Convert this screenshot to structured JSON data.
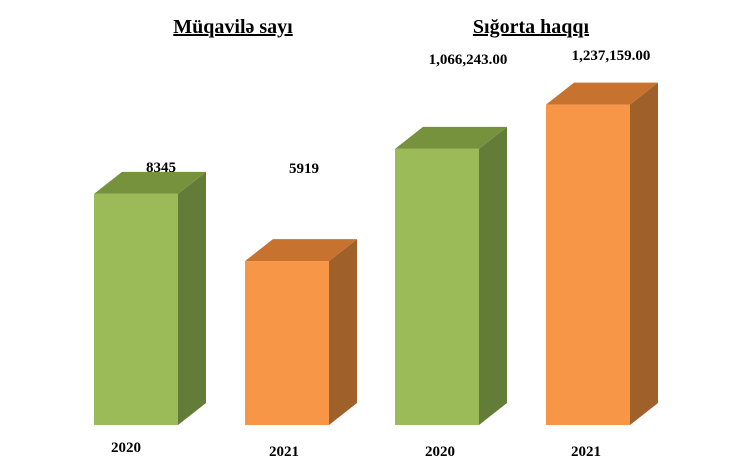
{
  "colors": {
    "green_front": "#9bbb59",
    "green_top": "#76923c",
    "green_side": "#637c38",
    "orange_front": "#f79646",
    "orange_top": "#c7722f",
    "orange_side": "#a0602a"
  },
  "chart_data": [
    {
      "type": "bar",
      "title": "Müqavilə sayı",
      "categories": [
        "2020",
        "2021"
      ],
      "values": [
        8345,
        5919
      ],
      "value_labels": [
        "8345",
        "5919"
      ],
      "colors": [
        "#9bbb59",
        "#f79646"
      ],
      "ylim": [
        0,
        13000
      ],
      "grid": false,
      "three_d": true
    },
    {
      "type": "bar",
      "title": "Sığorta haqqı",
      "categories": [
        "2020",
        "2021"
      ],
      "values": [
        1066243.0,
        1237159.0
      ],
      "value_labels": [
        "1,066,243.00",
        "1,237,159.00"
      ],
      "colors": [
        "#9bbb59",
        "#f79646"
      ],
      "ylim": [
        0,
        1390000
      ],
      "grid": false,
      "three_d": true
    }
  ]
}
